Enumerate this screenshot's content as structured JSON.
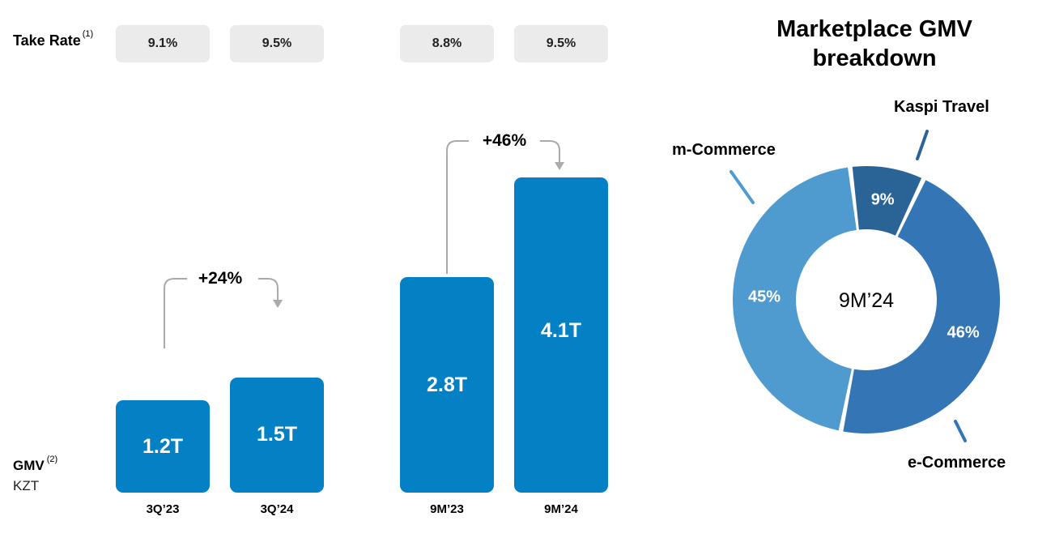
{
  "take_rate": {
    "label": "Take Rate",
    "footnote": "(1)",
    "values": [
      "9.1%",
      "9.5%",
      "8.8%",
      "9.5%"
    ]
  },
  "gmv": {
    "label": "GMV",
    "footnote": "(2)",
    "unit": "KZT"
  },
  "growth": {
    "quarter": "+24%",
    "nine_months": "+46%"
  },
  "chart_data": [
    {
      "type": "bar",
      "categories": [
        "3Q’23",
        "3Q’24",
        "9M’23",
        "9M’24"
      ],
      "values": [
        1.2,
        1.5,
        2.8,
        4.1
      ],
      "value_labels": [
        "1.2T",
        "1.5T",
        "2.8T",
        "4.1T"
      ],
      "ylabel": "GMV KZT",
      "color": "#0480c4"
    },
    {
      "type": "pie",
      "title": "Marketplace GMV breakdown",
      "center_label": "9M’24",
      "slices": [
        {
          "name": "Kaspi Travel",
          "value": 9,
          "label": "9%",
          "color": "#2a6497"
        },
        {
          "name": "e-Commerce",
          "value": 46,
          "label": "46%",
          "color": "#3476b5"
        },
        {
          "name": "m-Commerce",
          "value": 45,
          "label": "45%",
          "color": "#4f9bd0"
        }
      ]
    }
  ]
}
